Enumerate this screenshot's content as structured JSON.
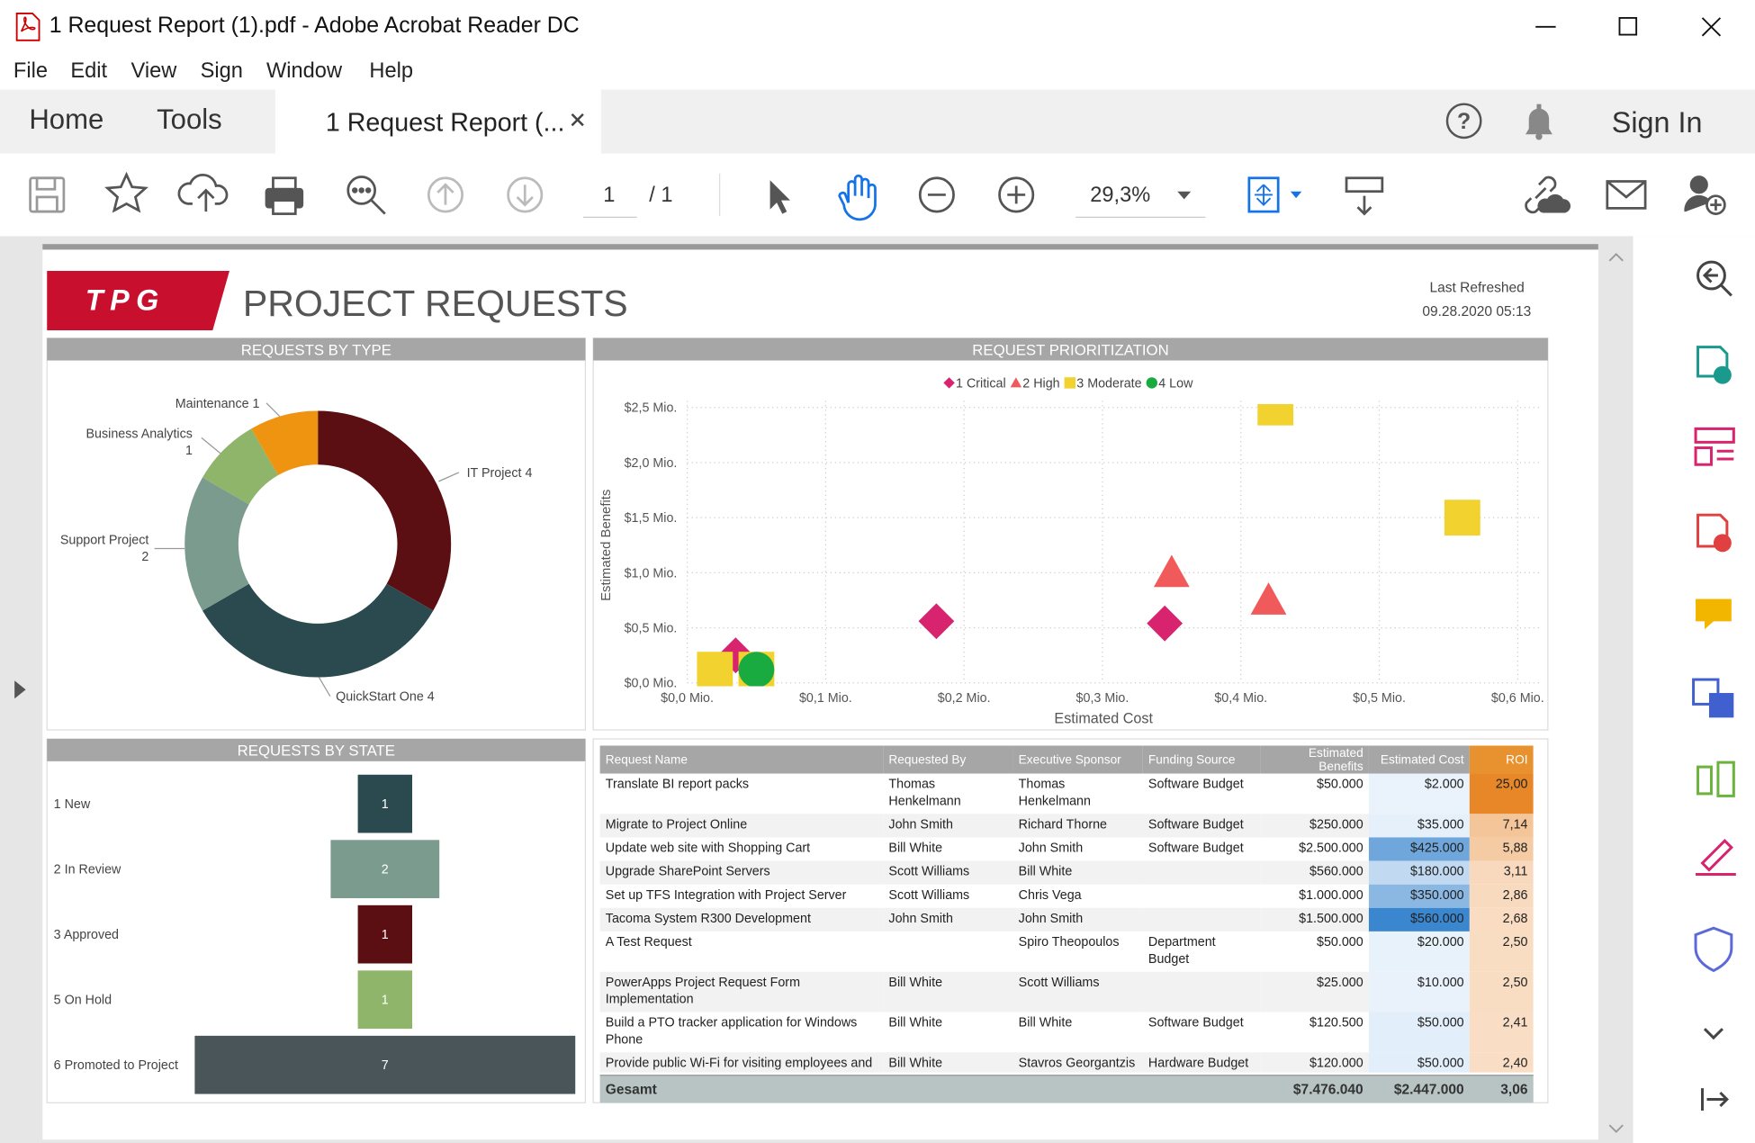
{
  "window": {
    "title": "1 Request Report (1).pdf - Adobe Acrobat Reader DC"
  },
  "menu": [
    "File",
    "Edit",
    "View",
    "Sign",
    "Window",
    "Help"
  ],
  "tabs": {
    "home": "Home",
    "tools": "Tools",
    "document": "1 Request Report (...",
    "sign_in": "Sign In"
  },
  "toolbar": {
    "page": "1",
    "page_total": "/ 1",
    "zoom": "29,3%"
  },
  "report": {
    "logo": "TPG",
    "title": "PROJECT REQUESTS",
    "refreshed_label": "Last Refreshed",
    "refreshed": "09.28.2020 05:13"
  },
  "chart_data": [
    {
      "type": "donut",
      "title": "REQUESTS BY TYPE",
      "categories": [
        "IT Project",
        "QuickStart One",
        "Support Project",
        "Business Analytics",
        "Maintenance"
      ],
      "values": [
        4,
        4,
        2,
        1,
        1
      ],
      "colors": [
        "#5c0f12",
        "#2a4a4f",
        "#7b9b8f",
        "#8fb56a",
        "#ef9411"
      ]
    },
    {
      "type": "scatter",
      "title": "REQUEST PRIORITIZATION",
      "x_label": "Estimated Cost",
      "y_label": "Estimated Benefits",
      "xlim": [
        0,
        0.6
      ],
      "ylim": [
        0,
        2.5
      ],
      "grid": true,
      "xticks": [
        {
          "value": 0,
          "label": "$0,0 Mio."
        },
        {
          "value": 0.1,
          "label": "$0,1 Mio."
        },
        {
          "value": 0.2,
          "label": "$0,2 Mio."
        },
        {
          "value": 0.3,
          "label": "$0,3 Mio."
        },
        {
          "value": 0.4,
          "label": "$0,4 Mio."
        },
        {
          "value": 0.5,
          "label": "$0,5 Mio."
        },
        {
          "value": 0.6,
          "label": "$0,6 Mio."
        }
      ],
      "yticks": [
        {
          "value": 0,
          "label": "$0,0 Mio."
        },
        {
          "value": 0.5,
          "label": "$0,5 Mio."
        },
        {
          "value": 1,
          "label": "$1,0 Mio."
        },
        {
          "value": 1.5,
          "label": "$1,5 Mio."
        },
        {
          "value": 2,
          "label": "$2,0 Mio."
        },
        {
          "value": 2.5,
          "label": "$2,5 Mio."
        }
      ],
      "series": [
        {
          "name": "1 Critical",
          "color": "#d8236f",
          "marker": "diamond",
          "x": [
            0.035,
            0.18,
            0.345
          ],
          "values": [
            0.25,
            0.56,
            0.54
          ]
        },
        {
          "name": "2 High",
          "color": "#f05a5a",
          "marker": "triangle",
          "x": [
            0.35,
            0.42
          ],
          "values": [
            1.0,
            0.75
          ]
        },
        {
          "name": "3 Moderate",
          "color": "#f2d22e",
          "marker": "square",
          "x": [
            0.425,
            0.56,
            0.02,
            0.05
          ],
          "values": [
            2.5,
            1.5,
            0.12,
            0.12
          ]
        },
        {
          "name": "4 Low",
          "color": "#1aab40",
          "marker": "circle",
          "x": [
            0.05
          ],
          "values": [
            0.12
          ]
        }
      ]
    },
    {
      "type": "funnel",
      "title": "REQUESTS BY STATE",
      "categories": [
        "1 New",
        "2 In Review",
        "3 Approved",
        "5 On Hold",
        "6 Promoted to Project"
      ],
      "values": [
        1,
        2,
        1,
        1,
        7
      ],
      "colors": [
        "#2a4a4f",
        "#7b9b8f",
        "#5c0f12",
        "#8fb56a",
        "#4a5559"
      ]
    }
  ],
  "table": {
    "columns": [
      "Request Name",
      "Requested By",
      "Executive Sponsor",
      "Funding Source",
      "Estimated Benefits",
      "Estimated Cost",
      "ROI"
    ],
    "rows": [
      [
        "Translate BI report packs",
        "Thomas Henkelmann",
        "Thomas Henkelmann",
        "Software Budget",
        "$50.000",
        "$2.000",
        "25,00"
      ],
      [
        "Migrate to Project Online",
        "John Smith",
        "Richard Thorne",
        "Software Budget",
        "$250.000",
        "$35.000",
        "7,14"
      ],
      [
        "Update web site with Shopping Cart",
        "Bill White",
        "John Smith",
        "Software Budget",
        "$2.500.000",
        "$425.000",
        "5,88"
      ],
      [
        "Upgrade SharePoint Servers",
        "Scott Williams",
        "Bill White",
        null,
        "$560.000",
        "$180.000",
        "3,11"
      ],
      [
        "Set up TFS Integration with Project Server",
        "Scott Williams",
        "Chris Vega",
        null,
        "$1.000.000",
        "$350.000",
        "2,86"
      ],
      [
        "Tacoma System R300 Development",
        "John Smith",
        "John Smith",
        null,
        "$1.500.000",
        "$560.000",
        "2,68"
      ],
      [
        "A Test Request",
        null,
        "Spiro Theopoulos",
        "Department Budget",
        "$50.000",
        "$20.000",
        "2,50"
      ],
      [
        "PowerApps Project Request Form Implementation",
        "Bill White",
        "Scott Williams",
        null,
        "$25.000",
        "$10.000",
        "2,50"
      ],
      [
        "Build a PTO tracker application for Windows Phone",
        "Bill White",
        "Bill White",
        "Software Budget",
        "$120.500",
        "$50.000",
        "2,41"
      ],
      [
        "Provide public Wi-Fi for visiting employees and authorized guests",
        "Bill White",
        "Stavros Georgantzis",
        "Hardware Budget",
        "$120.000",
        "$50.000",
        "2,40"
      ]
    ],
    "total": [
      "Gesamt",
      null,
      null,
      null,
      "$7.476.040",
      "$2.447.000",
      "3,06"
    ]
  }
}
